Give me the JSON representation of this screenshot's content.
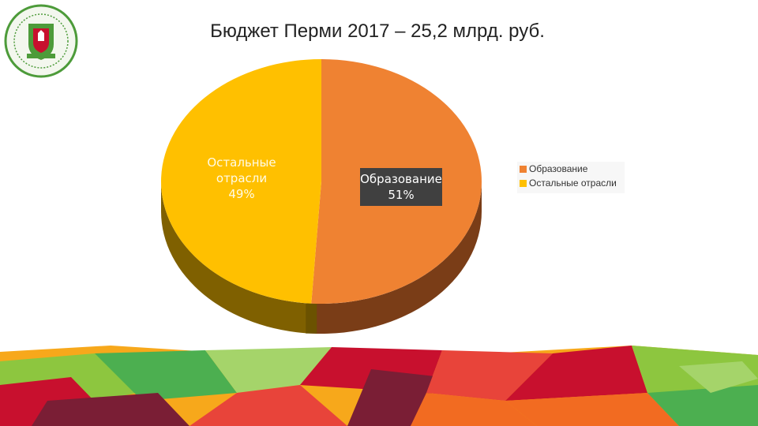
{
  "header": {
    "title": "Бюджет Перми 2017 – 25,2 млрд. руб."
  },
  "logo": {
    "icon": "city-administration-emblem-icon",
    "colors": {
      "ring": "#4d9b3a",
      "fill": "#f3f7ee",
      "shield": "#4d9b3a",
      "accent": "#c8102e"
    }
  },
  "chart_data": {
    "type": "pie",
    "title": "Бюджет Перми 2017 – 25,2 млрд. руб.",
    "total_label": "25,2 млрд. руб.",
    "slices": [
      {
        "name": "Образование",
        "value": 51,
        "label": "Образование",
        "pct_label": "51%",
        "color": "#ef8232",
        "side_color": "#7a3d17"
      },
      {
        "name": "Остальные отрасли",
        "value": 49,
        "label": "Остальные\nотрасли",
        "pct_label": "49%",
        "color": "#ffc000",
        "side_color": "#7f6000"
      }
    ],
    "legend": {
      "position": "right",
      "items": [
        {
          "label": "Образование",
          "color": "#ef8232"
        },
        {
          "label": "Остальные отрасли",
          "color": "#ffc000"
        }
      ]
    }
  },
  "decor": {
    "icon": "polygon-banner-decoration",
    "colors": [
      "#c8102e",
      "#e8443a",
      "#f26b21",
      "#8dc63f",
      "#4caf50",
      "#7a1e35",
      "#f7a81b"
    ]
  }
}
